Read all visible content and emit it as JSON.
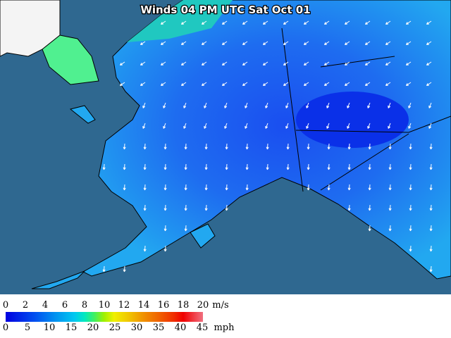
{
  "title": "Winds 04 PM UTC Sat Oct 01",
  "legend": {
    "ms": {
      "labels": [
        "0",
        "2",
        "4",
        "6",
        "8",
        "10",
        "12",
        "14",
        "16",
        "18",
        "20"
      ],
      "unit": "m/s"
    },
    "mph": {
      "labels": [
        "0",
        "5",
        "10",
        "15",
        "20",
        "25",
        "30",
        "35",
        "40",
        "45"
      ],
      "unit": "mph"
    }
  }
}
